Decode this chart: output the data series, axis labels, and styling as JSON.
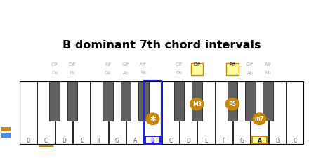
{
  "title": "B dominant 7th chord intervals",
  "title_fontsize": 11.5,
  "bg_color": "#ffffff",
  "gold": "#c8860a",
  "gray_text": "#aaaaaa",
  "blue_box": "#2222dd",
  "sidebar_bg": "#1a1a1a",
  "sidebar_text_color": "#ffffff",
  "sidebar_blue": "#4488ff",
  "white_keys": [
    "B",
    "C",
    "D",
    "E",
    "F",
    "G",
    "A",
    "B",
    "C",
    "D",
    "E",
    "F",
    "G",
    "A",
    "B",
    "C"
  ],
  "black_after_whites": [
    1,
    2,
    4,
    5,
    6,
    8,
    9,
    11,
    12,
    13
  ],
  "black_labels": {
    "1": [
      "C#",
      "Db"
    ],
    "2": [
      "D#",
      "Eb"
    ],
    "4": [
      "F#",
      "Gb"
    ],
    "5": [
      "G#",
      "Ab"
    ],
    "6": [
      "A#",
      "Bb"
    ],
    "8": [
      "C#",
      "Db"
    ],
    "9": [
      "D#",
      ""
    ],
    "11": [
      "F#",
      ""
    ],
    "12": [
      "G#",
      "Ab"
    ],
    "13": [
      "A#",
      "Bb"
    ]
  },
  "highlighted_blacks": [
    9,
    11
  ],
  "root_white_idx": 7,
  "m3_black_after_idx": 9,
  "p5_black_after_idx": 11,
  "m7_white_idx": 13,
  "c_underline_idx": 1,
  "num_white_keys": 16,
  "note_labels": {
    "7": "*",
    "9": "M3",
    "11": "P5",
    "13": "m7"
  }
}
